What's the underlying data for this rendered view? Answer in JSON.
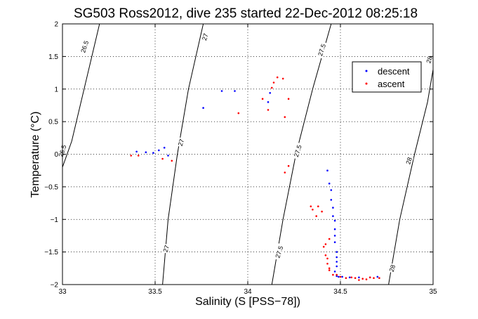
{
  "chart_data": {
    "type": "scatter",
    "title": "SG503 Ross2012, dive 235 started 22-Dec-2012 08:25:18",
    "xlabel": "Salinity (S [PSS−78])",
    "ylabel": "Temperature (°C)",
    "xlim": [
      33,
      35
    ],
    "ylim": [
      -2,
      2
    ],
    "x_ticks": [
      "33",
      "33.5",
      "34",
      "34.5",
      "35"
    ],
    "y_ticks": [
      "−2",
      "−1.5",
      "−1",
      "−0.5",
      "0",
      "0.5",
      "1",
      "1.5",
      "2"
    ],
    "grid": true,
    "legend_position": "top-right",
    "isopycnals": [
      {
        "label": "26.5",
        "points": [
          [
            33.0,
            -0.2
          ],
          [
            33.05,
            0.2
          ],
          [
            33.1,
            0.8
          ],
          [
            33.15,
            1.4
          ],
          [
            33.2,
            2.0
          ]
        ]
      },
      {
        "label": "27",
        "points": [
          [
            33.54,
            -2.0
          ],
          [
            33.57,
            -1.0
          ],
          [
            33.62,
            0.0
          ],
          [
            33.68,
            1.0
          ],
          [
            33.76,
            2.0
          ]
        ]
      },
      {
        "label": "27.5",
        "points": [
          [
            34.13,
            -2.0
          ],
          [
            34.19,
            -1.0
          ],
          [
            34.26,
            0.0
          ],
          [
            34.35,
            1.0
          ],
          [
            34.45,
            2.0
          ]
        ]
      },
      {
        "label": "28",
        "points": [
          [
            34.76,
            -2.0
          ],
          [
            34.82,
            -1.0
          ],
          [
            34.9,
            0.0
          ],
          [
            34.97,
            0.8
          ],
          [
            35.0,
            1.3
          ]
        ]
      }
    ],
    "contour_labels": [
      {
        "text": "26.5",
        "x": 33.12,
        "y": 1.65
      },
      {
        "text": "26.5",
        "x": 33.0,
        "y": 0.05
      },
      {
        "text": "27",
        "x": 33.77,
        "y": 1.8
      },
      {
        "text": "27",
        "x": 33.64,
        "y": 0.18
      },
      {
        "text": "27",
        "x": 33.56,
        "y": -1.45
      },
      {
        "text": "27.5",
        "x": 34.4,
        "y": 1.6
      },
      {
        "text": "27.5",
        "x": 34.27,
        "y": 0.05
      },
      {
        "text": "27.5",
        "x": 34.17,
        "y": -1.5
      },
      {
        "text": "28",
        "x": 34.98,
        "y": 1.45
      },
      {
        "text": "28",
        "x": 34.87,
        "y": -0.1
      },
      {
        "text": "28",
        "x": 34.78,
        "y": -1.75
      }
    ],
    "series": [
      {
        "name": "descent",
        "color": "#0000ff",
        "points": [
          [
            33.4,
            0.04
          ],
          [
            33.45,
            0.03
          ],
          [
            33.49,
            0.02
          ],
          [
            33.52,
            0.06
          ],
          [
            33.55,
            0.1
          ],
          [
            33.57,
            -0.02
          ],
          [
            33.76,
            0.71
          ],
          [
            33.86,
            0.97
          ],
          [
            33.93,
            0.97
          ],
          [
            34.11,
            0.8
          ],
          [
            34.12,
            0.94
          ],
          [
            34.43,
            -0.25
          ],
          [
            34.44,
            -0.45
          ],
          [
            34.45,
            -0.55
          ],
          [
            34.45,
            -0.7
          ],
          [
            34.46,
            -0.82
          ],
          [
            34.46,
            -0.95
          ],
          [
            34.47,
            -1.02
          ],
          [
            34.47,
            -1.15
          ],
          [
            34.47,
            -1.25
          ],
          [
            34.47,
            -1.35
          ],
          [
            34.48,
            -1.5
          ],
          [
            34.48,
            -1.58
          ],
          [
            34.48,
            -1.65
          ],
          [
            34.48,
            -1.72
          ],
          [
            34.47,
            -1.8
          ],
          [
            34.48,
            -1.87
          ],
          [
            34.49,
            -1.88
          ],
          [
            34.51,
            -1.88
          ],
          [
            34.55,
            -1.89
          ],
          [
            34.6,
            -1.89
          ],
          [
            34.66,
            -1.89
          ],
          [
            34.7,
            -1.88
          ]
        ]
      },
      {
        "name": "ascent",
        "color": "#ff0000",
        "points": [
          [
            33.37,
            -0.02
          ],
          [
            33.41,
            -0.02
          ],
          [
            33.54,
            -0.07
          ],
          [
            33.59,
            -0.1
          ],
          [
            33.95,
            0.63
          ],
          [
            34.08,
            0.85
          ],
          [
            34.11,
            0.68
          ],
          [
            34.13,
            1.02
          ],
          [
            34.14,
            1.1
          ],
          [
            34.16,
            1.18
          ],
          [
            34.19,
            1.16
          ],
          [
            34.22,
            0.85
          ],
          [
            34.2,
            0.57
          ],
          [
            34.2,
            -0.28
          ],
          [
            34.22,
            -0.18
          ],
          [
            34.34,
            -0.8
          ],
          [
            34.35,
            -0.85
          ],
          [
            34.37,
            -0.95
          ],
          [
            34.38,
            -0.8
          ],
          [
            34.4,
            -0.88
          ],
          [
            34.41,
            -1.42
          ],
          [
            34.42,
            -1.38
          ],
          [
            34.42,
            -1.55
          ],
          [
            34.43,
            -1.6
          ],
          [
            34.44,
            -1.3
          ],
          [
            34.43,
            -1.68
          ],
          [
            34.44,
            -1.75
          ],
          [
            34.44,
            -1.78
          ],
          [
            34.46,
            -1.85
          ],
          [
            34.48,
            -1.85
          ],
          [
            34.5,
            -1.88
          ],
          [
            34.53,
            -1.9
          ],
          [
            34.56,
            -1.89
          ],
          [
            34.58,
            -1.9
          ],
          [
            34.6,
            -1.93
          ],
          [
            34.62,
            -1.91
          ],
          [
            34.64,
            -1.92
          ],
          [
            34.66,
            -1.89
          ],
          [
            34.68,
            -1.9
          ],
          [
            34.71,
            -1.9
          ]
        ]
      }
    ]
  }
}
